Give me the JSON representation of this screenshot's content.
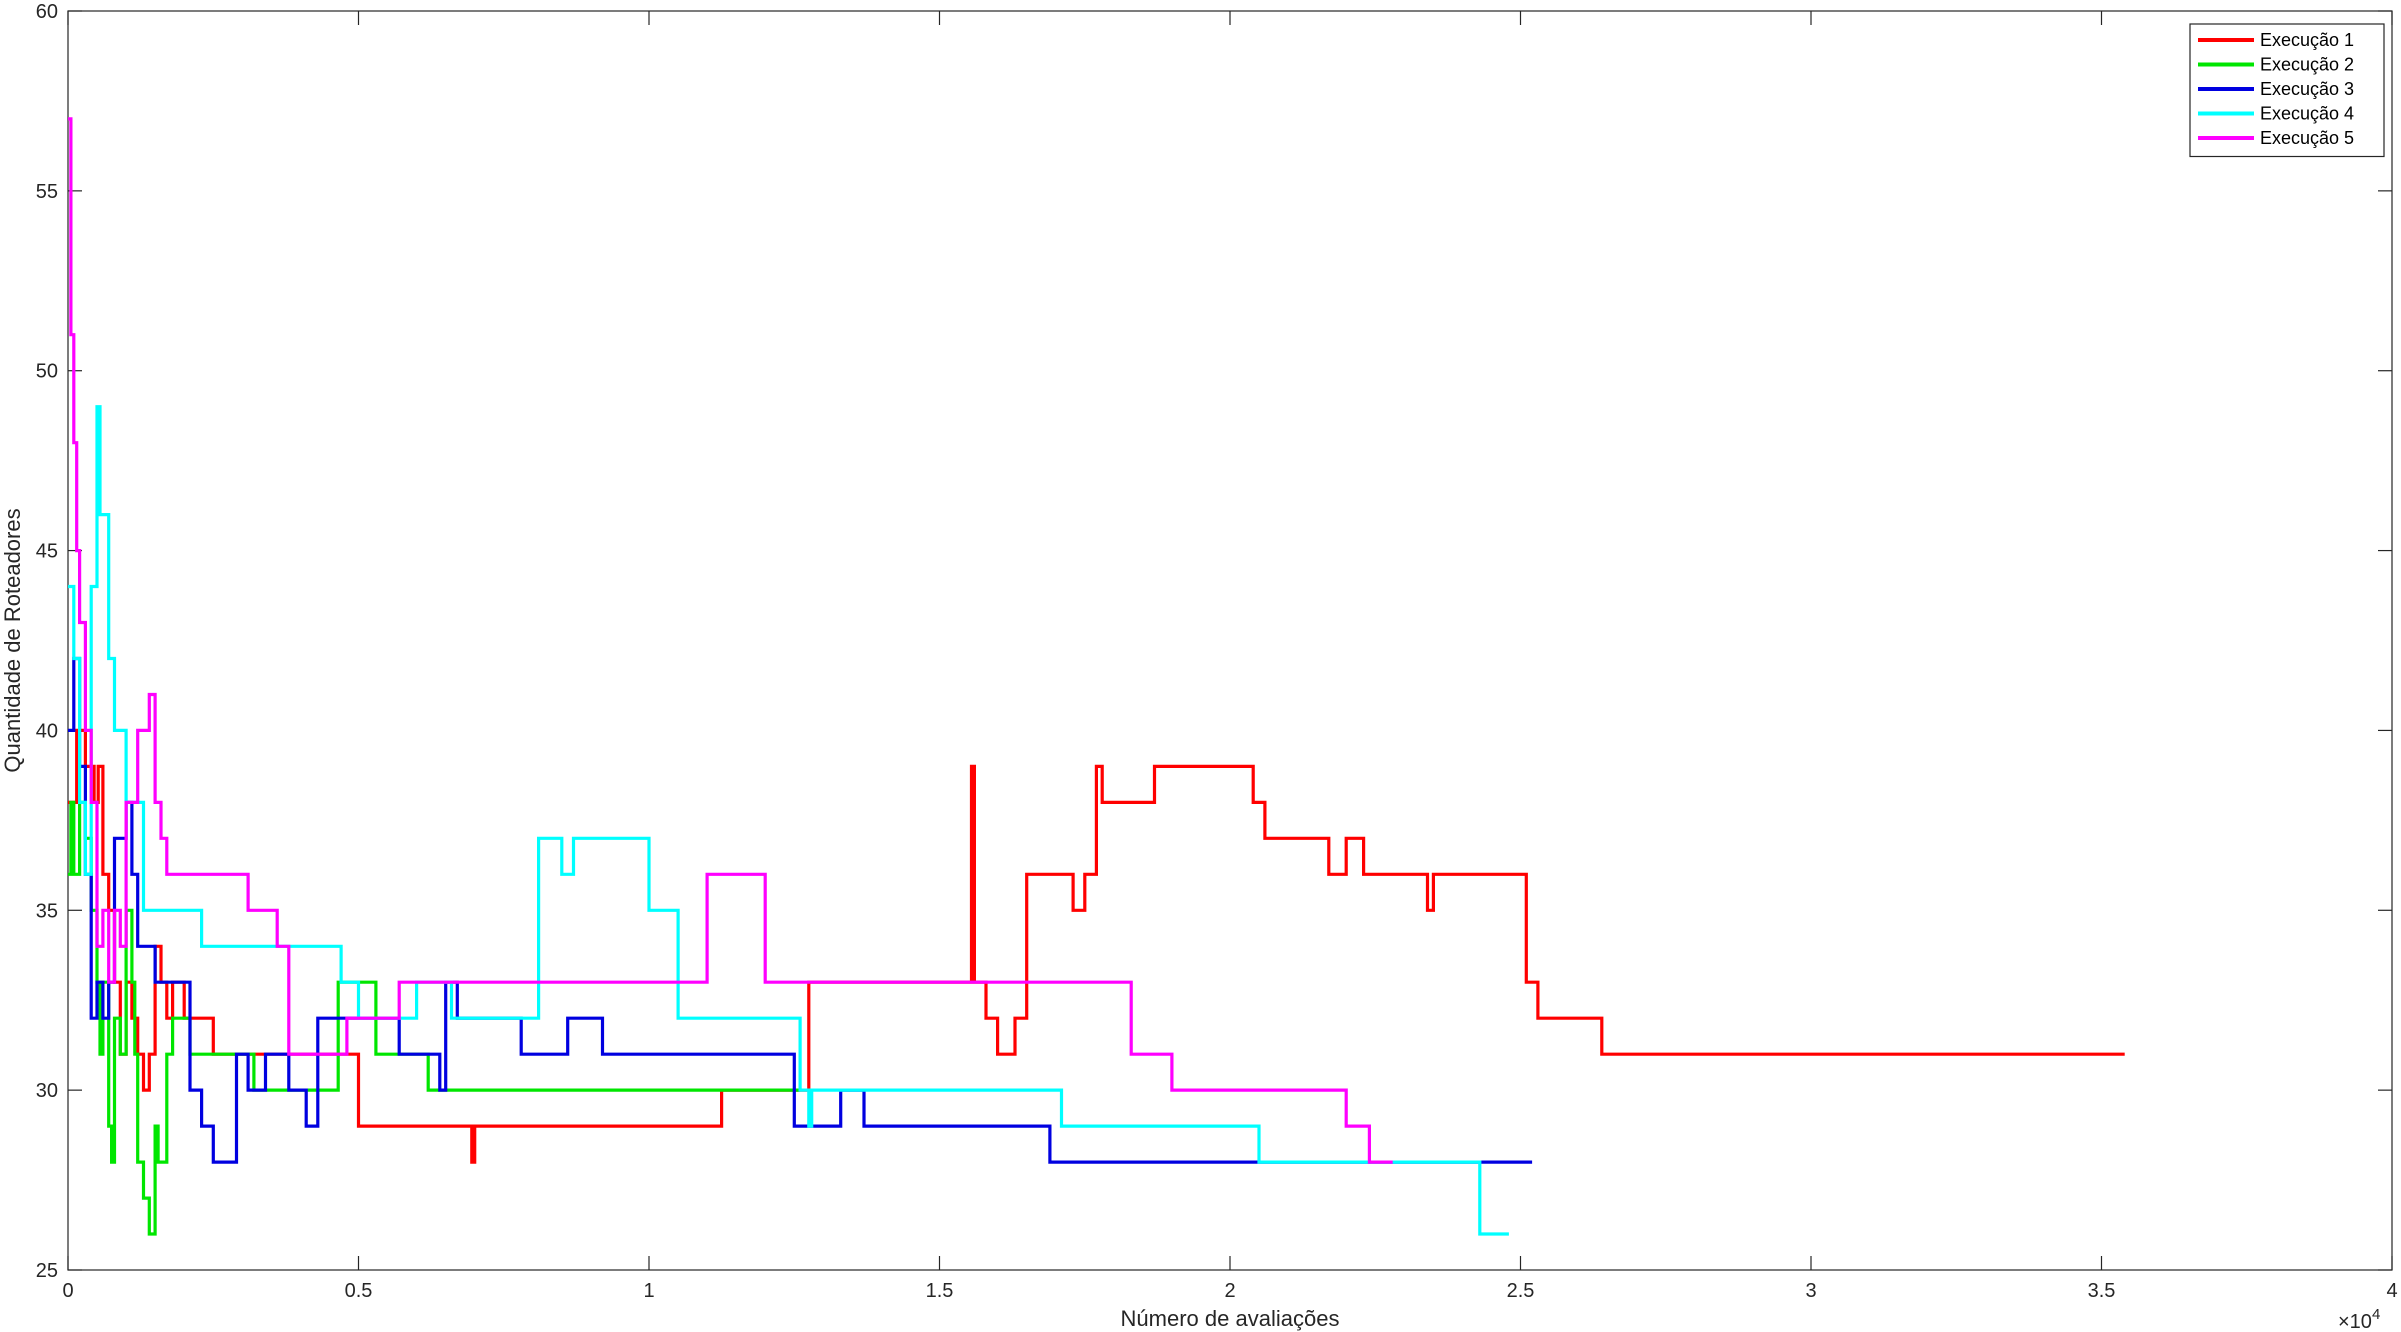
{
  "chart_data": {
    "type": "line",
    "title": "",
    "xlabel": "Número de avaliações",
    "ylabel": "Quantidade de Roteadores",
    "x_exponent_label": "×10",
    "x_exponent_power": "4",
    "xlim": [
      0,
      40000
    ],
    "ylim": [
      25,
      60
    ],
    "x_ticks": [
      0,
      5000,
      10000,
      15000,
      20000,
      25000,
      30000,
      35000,
      40000
    ],
    "x_tick_labels": [
      "0",
      "0.5",
      "1",
      "1.5",
      "2",
      "2.5",
      "3",
      "3.5",
      "4"
    ],
    "y_ticks": [
      25,
      30,
      35,
      40,
      45,
      50,
      55,
      60
    ],
    "y_tick_labels": [
      "25",
      "30",
      "35",
      "40",
      "45",
      "50",
      "55",
      "60"
    ],
    "grid": false,
    "legend_position": "top-right",
    "series": [
      {
        "name": "Execução 1",
        "color": "#ff0000",
        "points": [
          [
            0,
            38
          ],
          [
            150,
            40
          ],
          [
            300,
            39
          ],
          [
            450,
            38
          ],
          [
            520,
            39
          ],
          [
            600,
            36
          ],
          [
            700,
            35
          ],
          [
            800,
            33
          ],
          [
            900,
            31
          ],
          [
            1000,
            33
          ],
          [
            1100,
            32
          ],
          [
            1200,
            31
          ],
          [
            1300,
            30
          ],
          [
            1400,
            31
          ],
          [
            1500,
            34
          ],
          [
            1600,
            33
          ],
          [
            1700,
            32
          ],
          [
            1800,
            33
          ],
          [
            2000,
            32
          ],
          [
            2500,
            31
          ],
          [
            3000,
            31
          ],
          [
            4000,
            31
          ],
          [
            4800,
            31
          ],
          [
            5000,
            29
          ],
          [
            6900,
            29
          ],
          [
            6950,
            28
          ],
          [
            7000,
            29
          ],
          [
            11200,
            29
          ],
          [
            11250,
            30
          ],
          [
            12700,
            30
          ],
          [
            12750,
            33
          ],
          [
            15500,
            33
          ],
          [
            15550,
            39
          ],
          [
            15600,
            33
          ],
          [
            15800,
            32
          ],
          [
            16000,
            31
          ],
          [
            16300,
            32
          ],
          [
            16500,
            36
          ],
          [
            17300,
            35
          ],
          [
            17500,
            36
          ],
          [
            17700,
            39
          ],
          [
            17800,
            38
          ],
          [
            18700,
            39
          ],
          [
            20400,
            38
          ],
          [
            20600,
            37
          ],
          [
            21700,
            36
          ],
          [
            22000,
            37
          ],
          [
            22300,
            36
          ],
          [
            23400,
            35
          ],
          [
            23500,
            36
          ],
          [
            25100,
            33
          ],
          [
            25300,
            32
          ],
          [
            26400,
            31
          ],
          [
            35400,
            31
          ]
        ]
      },
      {
        "name": "Execução 2",
        "color": "#00e600",
        "points": [
          [
            0,
            36
          ],
          [
            50,
            38
          ],
          [
            100,
            36
          ],
          [
            200,
            38
          ],
          [
            300,
            37
          ],
          [
            400,
            35
          ],
          [
            500,
            33
          ],
          [
            550,
            31
          ],
          [
            600,
            33
          ],
          [
            700,
            29
          ],
          [
            750,
            28
          ],
          [
            800,
            32
          ],
          [
            900,
            31
          ],
          [
            1000,
            35
          ],
          [
            1100,
            33
          ],
          [
            1150,
            31
          ],
          [
            1200,
            28
          ],
          [
            1300,
            27
          ],
          [
            1400,
            26
          ],
          [
            1500,
            29
          ],
          [
            1550,
            28
          ],
          [
            1700,
            31
          ],
          [
            1800,
            32
          ],
          [
            2100,
            31
          ],
          [
            2600,
            31
          ],
          [
            3200,
            30
          ],
          [
            4600,
            30
          ],
          [
            4650,
            33
          ],
          [
            5300,
            31
          ],
          [
            5800,
            31
          ],
          [
            6200,
            30
          ],
          [
            12600,
            30
          ]
        ]
      },
      {
        "name": "Execução 3",
        "color": "#0000e0",
        "points": [
          [
            0,
            40
          ],
          [
            100,
            42
          ],
          [
            200,
            39
          ],
          [
            300,
            36
          ],
          [
            400,
            32
          ],
          [
            500,
            33
          ],
          [
            600,
            32
          ],
          [
            700,
            33
          ],
          [
            800,
            37
          ],
          [
            1000,
            38
          ],
          [
            1100,
            36
          ],
          [
            1200,
            34
          ],
          [
            1500,
            33
          ],
          [
            2000,
            33
          ],
          [
            2100,
            30
          ],
          [
            2300,
            29
          ],
          [
            2500,
            28
          ],
          [
            2900,
            31
          ],
          [
            3100,
            30
          ],
          [
            3400,
            31
          ],
          [
            3800,
            30
          ],
          [
            4100,
            29
          ],
          [
            4300,
            32
          ],
          [
            4800,
            32
          ],
          [
            5100,
            32
          ],
          [
            5700,
            31
          ],
          [
            6400,
            30
          ],
          [
            6500,
            33
          ],
          [
            6700,
            32
          ],
          [
            7800,
            31
          ],
          [
            8600,
            32
          ],
          [
            9200,
            31
          ],
          [
            12500,
            29
          ],
          [
            13300,
            30
          ],
          [
            13700,
            29
          ],
          [
            16900,
            28
          ],
          [
            25200,
            28
          ]
        ]
      },
      {
        "name": "Execução 4",
        "color": "#00ffff",
        "points": [
          [
            0,
            44
          ],
          [
            100,
            42
          ],
          [
            200,
            38
          ],
          [
            300,
            36
          ],
          [
            400,
            44
          ],
          [
            500,
            49
          ],
          [
            550,
            46
          ],
          [
            700,
            42
          ],
          [
            800,
            40
          ],
          [
            1000,
            38
          ],
          [
            1300,
            35
          ],
          [
            2300,
            34
          ],
          [
            3500,
            34
          ],
          [
            4700,
            33
          ],
          [
            5000,
            32
          ],
          [
            6000,
            33
          ],
          [
            6600,
            32
          ],
          [
            8100,
            37
          ],
          [
            8500,
            36
          ],
          [
            8700,
            37
          ],
          [
            10000,
            35
          ],
          [
            10500,
            32
          ],
          [
            12600,
            30
          ],
          [
            12750,
            29
          ],
          [
            12800,
            30
          ],
          [
            17100,
            29
          ],
          [
            20500,
            28
          ],
          [
            24300,
            26
          ],
          [
            24800,
            26
          ]
        ]
      },
      {
        "name": "Execução 5",
        "color": "#ff00ff",
        "points": [
          [
            0,
            57
          ],
          [
            50,
            51
          ],
          [
            100,
            48
          ],
          [
            150,
            45
          ],
          [
            200,
            43
          ],
          [
            300,
            40
          ],
          [
            400,
            38
          ],
          [
            500,
            34
          ],
          [
            600,
            35
          ],
          [
            700,
            33
          ],
          [
            800,
            35
          ],
          [
            900,
            34
          ],
          [
            1000,
            38
          ],
          [
            1200,
            40
          ],
          [
            1400,
            41
          ],
          [
            1500,
            38
          ],
          [
            1600,
            37
          ],
          [
            1700,
            36
          ],
          [
            3100,
            35
          ],
          [
            3600,
            34
          ],
          [
            3800,
            31
          ],
          [
            4800,
            32
          ],
          [
            5700,
            33
          ],
          [
            11000,
            36
          ],
          [
            12000,
            33
          ],
          [
            18300,
            31
          ],
          [
            19000,
            30
          ],
          [
            22000,
            29
          ],
          [
            22400,
            28
          ],
          [
            22800,
            28
          ]
        ]
      }
    ]
  }
}
